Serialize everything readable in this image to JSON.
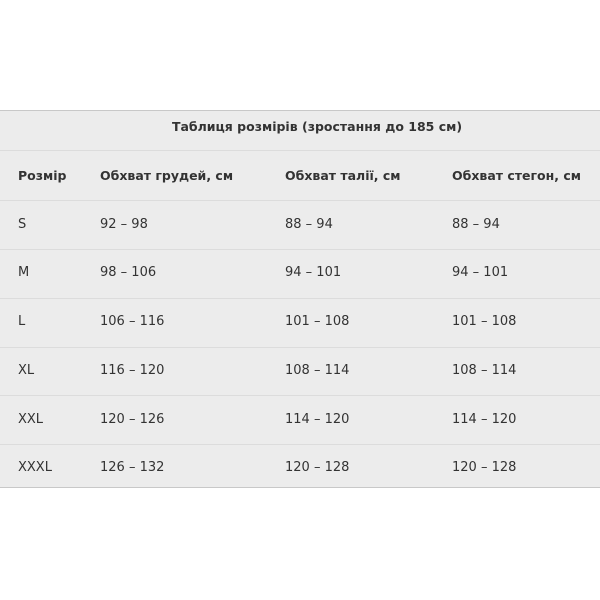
{
  "table": {
    "title": "Таблиця розмірів (зростання до 185 см)",
    "header": [
      "Розмір",
      "Обхват грудей, см",
      "Обхват талії, см",
      "Обхват стегон, см"
    ],
    "rows": [
      [
        "S",
        "92 – 98",
        "88 – 94",
        "88 – 94"
      ],
      [
        "M",
        "98 – 106",
        "94 – 101",
        "94 – 101"
      ],
      [
        "L",
        "106 – 116",
        "101 – 108",
        "101 – 108"
      ],
      [
        "XL",
        "116 – 120",
        "108 – 114",
        "108 – 114"
      ],
      [
        "XXL",
        "120 – 126",
        "114 – 120",
        "114 – 120"
      ],
      [
        "XXXL",
        "126 – 132",
        "120 – 128",
        "120 – 128"
      ]
    ]
  }
}
